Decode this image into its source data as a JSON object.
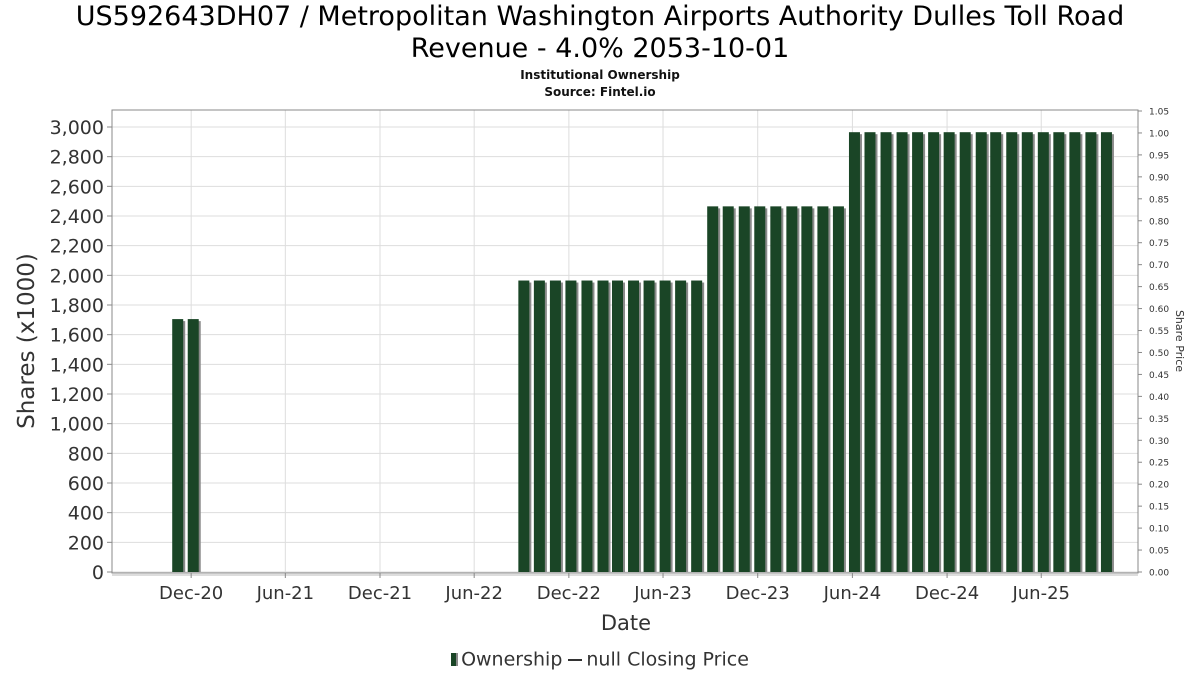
{
  "header": {
    "title_line1": "US592643DH07 / Metropolitan Washington Airports Authority Dulles Toll Road",
    "title_line2": "Revenue - 4.0% 2053-10-01",
    "subtitle1": "Institutional Ownership",
    "subtitle2": "Source: Fintel.io"
  },
  "legend": {
    "ownership": "Ownership",
    "price": "null Closing Price"
  },
  "colors": {
    "bar": "#1a4526",
    "bar_shadow": "#8a8a8a",
    "grid": "#dddddd",
    "axis": "#888888"
  },
  "chart_data": {
    "type": "bar",
    "xlabel": "Date",
    "ylabel": "Shares (x1000)",
    "y2label": "Share Price",
    "ylim": [
      0,
      3100
    ],
    "y2lim": [
      0,
      1.05
    ],
    "yticks": [
      "0",
      "200",
      "400",
      "600",
      "800",
      "1,000",
      "1,200",
      "1,400",
      "1,600",
      "1,800",
      "2,000",
      "2,200",
      "2,400",
      "2,600",
      "2,800",
      "3,000"
    ],
    "y2ticks": [
      "0.00",
      "0.05",
      "0.10",
      "0.15",
      "0.20",
      "0.25",
      "0.30",
      "0.35",
      "0.40",
      "0.45",
      "0.50",
      "0.55",
      "0.60",
      "0.65",
      "0.70",
      "0.75",
      "0.80",
      "0.85",
      "0.90",
      "0.95",
      "1.00",
      "1.05"
    ],
    "xticks": [
      "Dec-20",
      "Jun-21",
      "Dec-21",
      "Jun-22",
      "Dec-22",
      "Jun-23",
      "Dec-23",
      "Jun-24",
      "Dec-24",
      "Jun-25"
    ],
    "xrange": [
      "2020-07-01",
      "2025-12-05"
    ],
    "grid": true,
    "legend_position": "bottom",
    "series": [
      {
        "name": "Ownership",
        "values": [
          {
            "date": "2020-11-05",
            "value": 1705
          },
          {
            "date": "2020-12-05",
            "value": 1705
          },
          {
            "date": "2022-09-05",
            "value": 1965
          },
          {
            "date": "2022-10-05",
            "value": 1965
          },
          {
            "date": "2022-11-05",
            "value": 1965
          },
          {
            "date": "2022-12-05",
            "value": 1965
          },
          {
            "date": "2023-01-05",
            "value": 1965
          },
          {
            "date": "2023-02-05",
            "value": 1965
          },
          {
            "date": "2023-03-05",
            "value": 1965
          },
          {
            "date": "2023-04-05",
            "value": 1965
          },
          {
            "date": "2023-05-05",
            "value": 1965
          },
          {
            "date": "2023-06-05",
            "value": 1965
          },
          {
            "date": "2023-07-05",
            "value": 1965
          },
          {
            "date": "2023-08-05",
            "value": 1965
          },
          {
            "date": "2023-09-05",
            "value": 2465
          },
          {
            "date": "2023-10-05",
            "value": 2465
          },
          {
            "date": "2023-11-05",
            "value": 2465
          },
          {
            "date": "2023-12-05",
            "value": 2465
          },
          {
            "date": "2024-01-05",
            "value": 2465
          },
          {
            "date": "2024-02-05",
            "value": 2465
          },
          {
            "date": "2024-03-05",
            "value": 2465
          },
          {
            "date": "2024-04-05",
            "value": 2465
          },
          {
            "date": "2024-05-05",
            "value": 2465
          },
          {
            "date": "2024-06-05",
            "value": 2965
          },
          {
            "date": "2024-07-05",
            "value": 2965
          },
          {
            "date": "2024-08-05",
            "value": 2965
          },
          {
            "date": "2024-09-05",
            "value": 2965
          },
          {
            "date": "2024-10-05",
            "value": 2965
          },
          {
            "date": "2024-11-05",
            "value": 2965
          },
          {
            "date": "2024-12-05",
            "value": 2965
          },
          {
            "date": "2025-01-05",
            "value": 2965
          },
          {
            "date": "2025-02-05",
            "value": 2965
          },
          {
            "date": "2025-03-05",
            "value": 2965
          },
          {
            "date": "2025-04-05",
            "value": 2965
          },
          {
            "date": "2025-05-05",
            "value": 2965
          },
          {
            "date": "2025-06-05",
            "value": 2965
          },
          {
            "date": "2025-07-05",
            "value": 2965
          },
          {
            "date": "2025-08-05",
            "value": 2965
          },
          {
            "date": "2025-09-05",
            "value": 2965
          },
          {
            "date": "2025-10-05",
            "value": 2965
          }
        ]
      }
    ]
  }
}
